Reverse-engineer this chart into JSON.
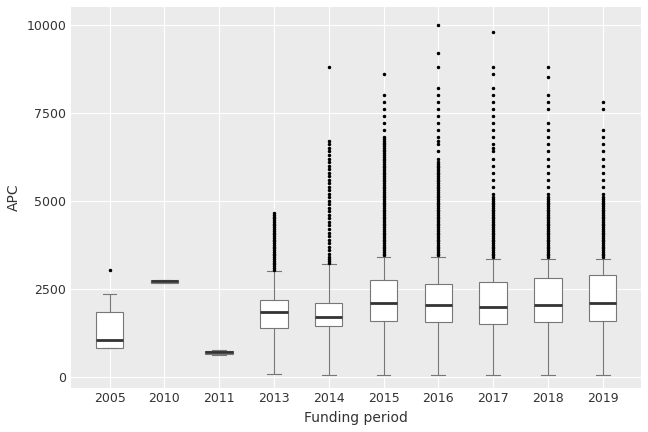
{
  "years": [
    "2005",
    "2010",
    "2011",
    "2013",
    "2014",
    "2015",
    "2016",
    "2017",
    "2018",
    "2019"
  ],
  "box_stats": {
    "2005": {
      "median": 1050,
      "q1": 830,
      "q3": 1850,
      "whislo": 830,
      "whishi": 2350,
      "fliers_high": [
        3050
      ],
      "fliers_low": []
    },
    "2010": {
      "median": 2720,
      "q1": 2680,
      "q3": 2760,
      "whislo": 2680,
      "whishi": 2760,
      "fliers_high": [],
      "fliers_low": []
    },
    "2011": {
      "median": 700,
      "q1": 660,
      "q3": 740,
      "whislo": 620,
      "whishi": 780,
      "fliers_high": [],
      "fliers_low": []
    },
    "2013": {
      "median": 1850,
      "q1": 1400,
      "q3": 2200,
      "whislo": 100,
      "whishi": 3000,
      "fliers_high": [
        3050,
        3100,
        3150,
        3200,
        3250,
        3300,
        3350,
        3400,
        3450,
        3500,
        3550,
        3600,
        3650,
        3700,
        3750,
        3800,
        3850,
        3900,
        3950,
        4000,
        4050,
        4100,
        4150,
        4200,
        4250,
        4300,
        4350,
        4400,
        4450,
        4500,
        4550,
        4600,
        4650
      ],
      "fliers_low": []
    },
    "2014": {
      "median": 1700,
      "q1": 1450,
      "q3": 2100,
      "whislo": 50,
      "whishi": 3200,
      "fliers_high": [
        3250,
        3300,
        3350,
        3400,
        3500,
        3600,
        3700,
        3800,
        3900,
        4000,
        4100,
        4200,
        4300,
        4400,
        4500,
        4600,
        4700,
        4800,
        4900,
        5000,
        5100,
        5200,
        5300,
        5400,
        5500,
        5600,
        5700,
        5800,
        5900,
        6000,
        6100,
        6200,
        6300,
        6400,
        6500,
        6600,
        6700,
        8800
      ],
      "fliers_low": []
    },
    "2015": {
      "median": 2100,
      "q1": 1600,
      "q3": 2750,
      "whislo": 50,
      "whishi": 3400,
      "fliers_high": [
        3450,
        3500,
        3550,
        3600,
        3650,
        3700,
        3750,
        3800,
        3850,
        3900,
        3950,
        4000,
        4050,
        4100,
        4150,
        4200,
        4250,
        4300,
        4350,
        4400,
        4450,
        4500,
        4550,
        4600,
        4650,
        4700,
        4750,
        4800,
        4850,
        4900,
        4950,
        5000,
        5050,
        5100,
        5150,
        5200,
        5250,
        5300,
        5350,
        5400,
        5450,
        5500,
        5550,
        5600,
        5650,
        5700,
        5750,
        5800,
        5850,
        5900,
        5950,
        6000,
        6050,
        6100,
        6150,
        6200,
        6250,
        6300,
        6350,
        6400,
        6450,
        6500,
        6550,
        6600,
        6650,
        6700,
        6750,
        6800,
        7000,
        7200,
        7400,
        7600,
        7800,
        8000,
        8600
      ],
      "fliers_low": []
    },
    "2016": {
      "median": 2050,
      "q1": 1550,
      "q3": 2650,
      "whislo": 50,
      "whishi": 3400,
      "fliers_high": [
        3450,
        3500,
        3550,
        3600,
        3650,
        3700,
        3750,
        3800,
        3850,
        3900,
        3950,
        4000,
        4050,
        4100,
        4150,
        4200,
        4250,
        4300,
        4350,
        4400,
        4450,
        4500,
        4550,
        4600,
        4650,
        4700,
        4750,
        4800,
        4850,
        4900,
        4950,
        5000,
        5050,
        5100,
        5150,
        5200,
        5250,
        5300,
        5350,
        5400,
        5450,
        5500,
        5550,
        5600,
        5650,
        5700,
        5750,
        5800,
        5850,
        5900,
        5950,
        6000,
        6050,
        6100,
        6200,
        6400,
        6600,
        6700,
        6800,
        7000,
        7200,
        7400,
        7600,
        7800,
        8000,
        8200,
        8800,
        9200,
        10000
      ],
      "fliers_low": []
    },
    "2017": {
      "median": 2000,
      "q1": 1500,
      "q3": 2700,
      "whislo": 50,
      "whishi": 3350,
      "fliers_high": [
        3400,
        3450,
        3500,
        3550,
        3600,
        3650,
        3700,
        3750,
        3800,
        3850,
        3900,
        3950,
        4000,
        4050,
        4100,
        4150,
        4200,
        4250,
        4300,
        4350,
        4400,
        4450,
        4500,
        4550,
        4600,
        4650,
        4700,
        4750,
        4800,
        4850,
        4900,
        4950,
        5000,
        5050,
        5100,
        5200,
        5400,
        5600,
        5800,
        6000,
        6200,
        6400,
        6500,
        6600,
        6800,
        7000,
        7200,
        7400,
        7600,
        7800,
        8000,
        8200,
        8600,
        8800,
        9800
      ],
      "fliers_low": []
    },
    "2018": {
      "median": 2050,
      "q1": 1550,
      "q3": 2800,
      "whislo": 50,
      "whishi": 3350,
      "fliers_high": [
        3400,
        3450,
        3500,
        3550,
        3600,
        3650,
        3700,
        3750,
        3800,
        3850,
        3900,
        3950,
        4000,
        4050,
        4100,
        4150,
        4200,
        4250,
        4300,
        4350,
        4400,
        4450,
        4500,
        4550,
        4600,
        4650,
        4700,
        4750,
        4800,
        4850,
        4900,
        4950,
        5000,
        5050,
        5100,
        5200,
        5400,
        5600,
        5800,
        6000,
        6200,
        6400,
        6600,
        6800,
        7000,
        7200,
        7600,
        7800,
        8000,
        8500,
        8800
      ],
      "fliers_low": []
    },
    "2019": {
      "median": 2100,
      "q1": 1600,
      "q3": 2900,
      "whislo": 50,
      "whishi": 3350,
      "fliers_high": [
        3400,
        3450,
        3500,
        3550,
        3600,
        3650,
        3700,
        3750,
        3800,
        3850,
        3900,
        3950,
        4000,
        4050,
        4100,
        4150,
        4200,
        4250,
        4300,
        4350,
        4400,
        4450,
        4500,
        4550,
        4600,
        4650,
        4700,
        4750,
        4800,
        4850,
        4900,
        4950,
        5000,
        5050,
        5100,
        5200,
        5400,
        5600,
        5800,
        6000,
        6200,
        6400,
        6600,
        6800,
        7000,
        7600,
        7800
      ],
      "fliers_low": []
    }
  },
  "xlabel": "Funding period",
  "ylabel": "APC",
  "ylim": [
    -300,
    10500
  ],
  "yticks": [
    0,
    2500,
    5000,
    7500,
    10000
  ],
  "panel_bg": "#ebebeb",
  "plot_bg": "#ffffff",
  "box_color": "white",
  "box_edge_color": "#777777",
  "median_color": "#333333",
  "whisker_color": "#777777",
  "flier_color": "black",
  "flier_size": 1.5,
  "grid_color": "#ffffff",
  "box_width": 0.5
}
